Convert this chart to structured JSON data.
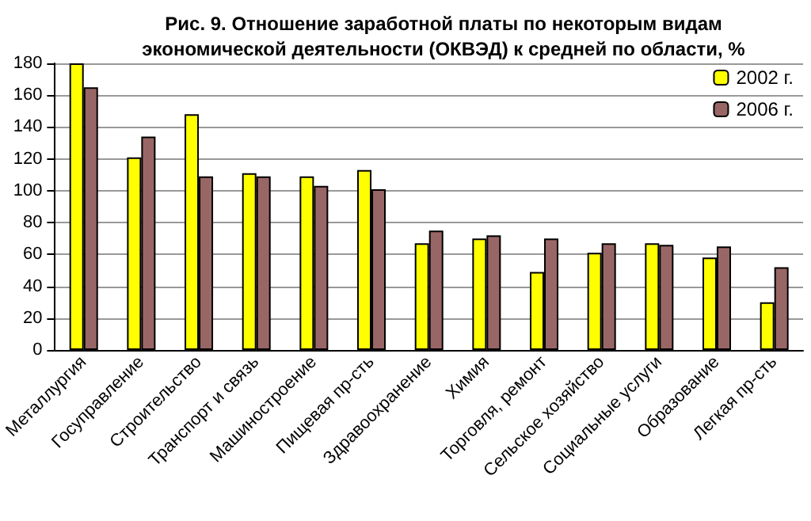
{
  "chart_data": {
    "type": "bar",
    "title": "Рис. 9. Отношение заработной платы по некоторым видам\nэкономической деятельности (ОКВЭД) к средней по области, %",
    "categories": [
      "Металлургия",
      "Госуправление",
      "Строительство",
      "Транспорт и связь",
      "Машиностроение",
      "Пищевая пр-сть",
      "Здравоохранение",
      "Химия",
      "Торговля, ремонт",
      "Сельское хозяйство",
      "Социальные услуги",
      "Образование",
      "Легкая пр-сть"
    ],
    "series": [
      {
        "name": "2002 г.",
        "color": "#ffff00",
        "values": [
          180,
          121,
          148,
          111,
          109,
          113,
          67,
          70,
          49,
          61,
          67,
          58,
          30
        ]
      },
      {
        "name": "2006 г.",
        "color": "#996666",
        "values": [
          165,
          134,
          109,
          109,
          103,
          101,
          75,
          72,
          70,
          67,
          66,
          65,
          52
        ]
      }
    ],
    "ylim": [
      0,
      180
    ],
    "yticks": [
      0,
      20,
      40,
      60,
      80,
      100,
      120,
      140,
      160,
      180
    ],
    "grid": "y",
    "legend": "top right"
  }
}
